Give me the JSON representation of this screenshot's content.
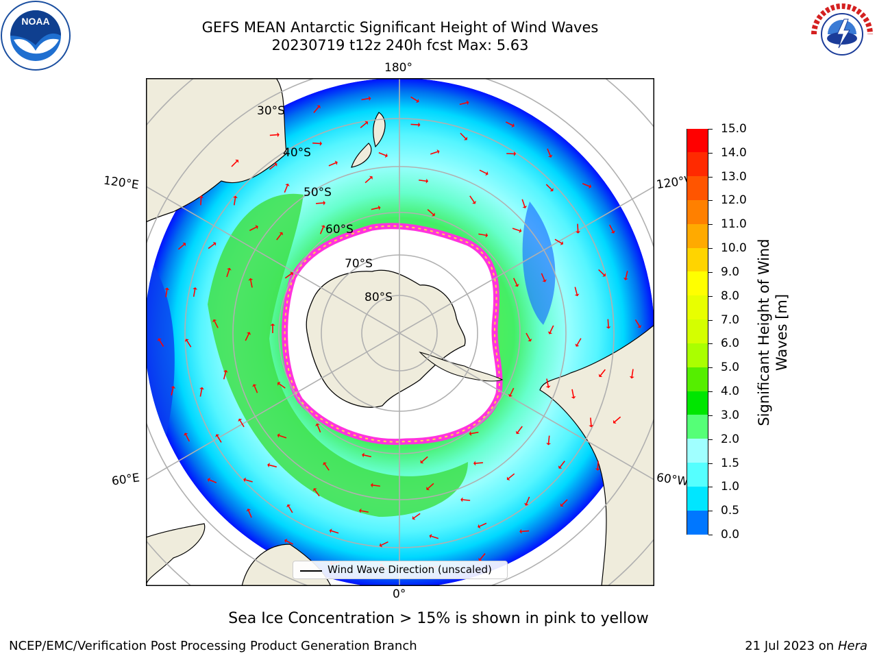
{
  "header": {
    "title_line1": "GEFS MEAN Antarctic Significant Height of Wind Waves",
    "title_line2": "20230719 t12z 240h fcst   Max: 5.63"
  },
  "logos": {
    "left": {
      "icon": "noaa-logo",
      "text": "NOAA"
    },
    "right": {
      "icon": "nws-logo",
      "text": "NATIONAL WEATHER SERVICE"
    }
  },
  "map": {
    "projection": "south polar stereographic",
    "longitude_labels": {
      "top": "180°",
      "bottom": "0°",
      "left_upper": "120°E",
      "left_lower": "60°E",
      "right_upper": "120°W",
      "right_lower": "60°W"
    },
    "latitude_labels": [
      "30°S",
      "40°S",
      "50°S",
      "60°S",
      "70°S",
      "80°S"
    ],
    "colors": {
      "land": "#efecdc",
      "ice_edge_pink": "#ff33dd",
      "ice_edge_yellow": "#ffd94a",
      "arrows": "#ff0000",
      "gridlines": "#b0b0b0"
    },
    "legend": "Wind Wave Direction (unscaled)"
  },
  "colorbar": {
    "title": "Significant Height of Wind Waves [m]",
    "title_line1": "Significant Height of Wind",
    "title_line2": "Waves [m]",
    "ticks": [
      "15.0",
      "14.0",
      "13.0",
      "12.0",
      "11.0",
      "10.0",
      "9.0",
      "8.0",
      "7.0",
      "6.0",
      "5.0",
      "4.0",
      "3.0",
      "2.0",
      "1.5",
      "1.0",
      "0.5",
      "0.0"
    ],
    "colors_top_to_bottom": [
      "#ff0000",
      "#ff2a00",
      "#ff5500",
      "#ff8000",
      "#ffaa00",
      "#ffd400",
      "#ffff00",
      "#e8ff00",
      "#d4ff00",
      "#aaff00",
      "#55ee00",
      "#00e600",
      "#55ff77",
      "#a0ffff",
      "#55ffff",
      "#00e6ff",
      "#0077ff",
      "#0000ff"
    ]
  },
  "footer": {
    "note": "Sea Ice Concentration > 15% is shown in pink to yellow",
    "credit_left": "NCEP/EMC/Verification Post Processing Product Generation Branch",
    "credit_right_date": "21 Jul 2023 on ",
    "credit_right_host": "Hera"
  }
}
